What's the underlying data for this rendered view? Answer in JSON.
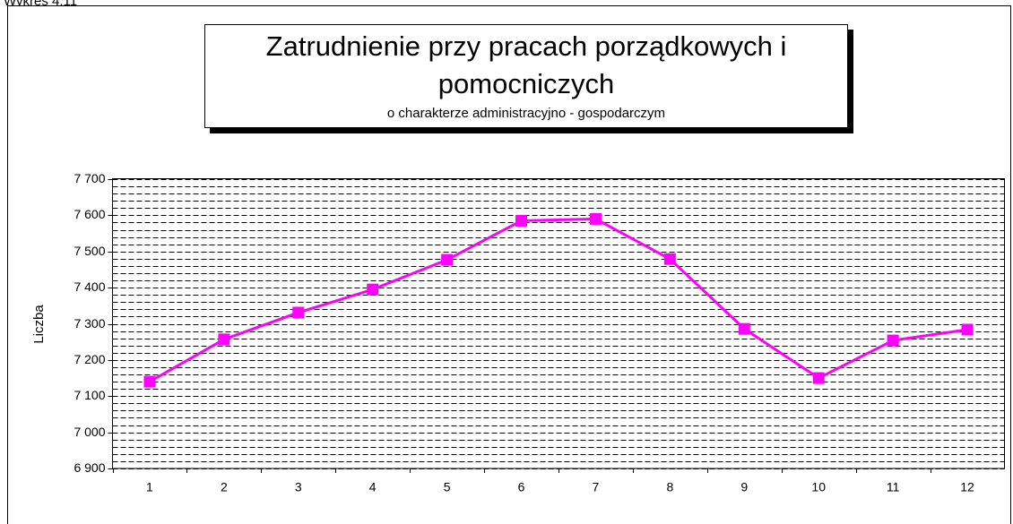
{
  "caption": "Wykres 4.11",
  "chart_data": {
    "type": "line",
    "title": [
      "Zatrudnienie przy pracach porządkowych i",
      "pomocniczych"
    ],
    "subtitle": "o charakterze administracyjno - gospodarczym",
    "y_label": "Liczba",
    "categories": [
      "1",
      "2",
      "3",
      "4",
      "5",
      "6",
      "7",
      "8",
      "9",
      "10",
      "11",
      "12"
    ],
    "series": [
      {
        "name": "Liczba",
        "color": "#ff00ff",
        "values": [
          7140,
          7257,
          7331,
          7395,
          7477,
          7585,
          7590,
          7479,
          7286,
          7150,
          7254,
          7284
        ]
      }
    ],
    "ylim": [
      6900,
      7700
    ],
    "yticks": [
      {
        "value": 6900,
        "label": "6 900"
      },
      {
        "value": 7000,
        "label": "7 000"
      },
      {
        "value": 7100,
        "label": "7 100"
      },
      {
        "value": 7200,
        "label": "7 200"
      },
      {
        "value": 7300,
        "label": "7 300"
      },
      {
        "value": 7400,
        "label": "7 400"
      },
      {
        "value": 7500,
        "label": "7 500"
      },
      {
        "value": 7600,
        "label": "7 600"
      },
      {
        "value": 7700,
        "label": "7 700"
      }
    ],
    "minor_yticks": [
      6920,
      6940,
      6960,
      6980,
      7020,
      7040,
      7060,
      7080,
      7120,
      7140,
      7160,
      7180,
      7220,
      7240,
      7260,
      7280,
      7320,
      7340,
      7360,
      7380,
      7420,
      7440,
      7460,
      7480,
      7520,
      7540,
      7560,
      7580,
      7620,
      7640,
      7660,
      7680
    ],
    "grid": true,
    "grid_style": "dashed"
  }
}
